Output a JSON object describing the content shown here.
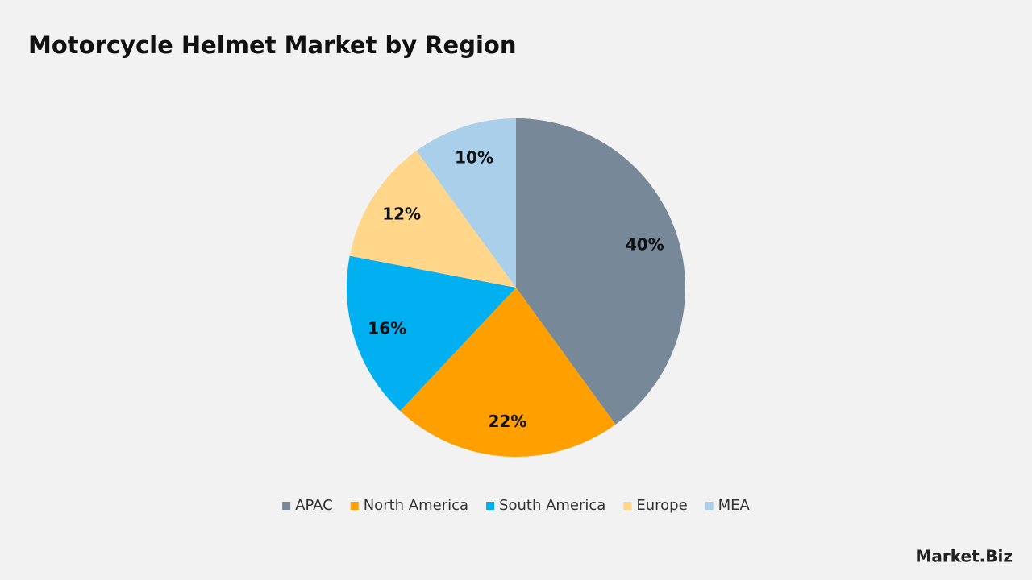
{
  "chart_data": {
    "type": "pie",
    "title": "Motorcycle Helmet Market by Region",
    "categories": [
      "APAC",
      "North America",
      "South America",
      "Europe",
      "MEA"
    ],
    "values": [
      40,
      22,
      16,
      12,
      10
    ],
    "value_labels": [
      "40%",
      "22%",
      "16%",
      "12%",
      "10%"
    ],
    "colors": [
      "#778899",
      "#ffa000",
      "#00b0f0",
      "#ffd68a",
      "#aacfeb"
    ],
    "legend": "bottom"
  },
  "watermark": "Market.Biz"
}
